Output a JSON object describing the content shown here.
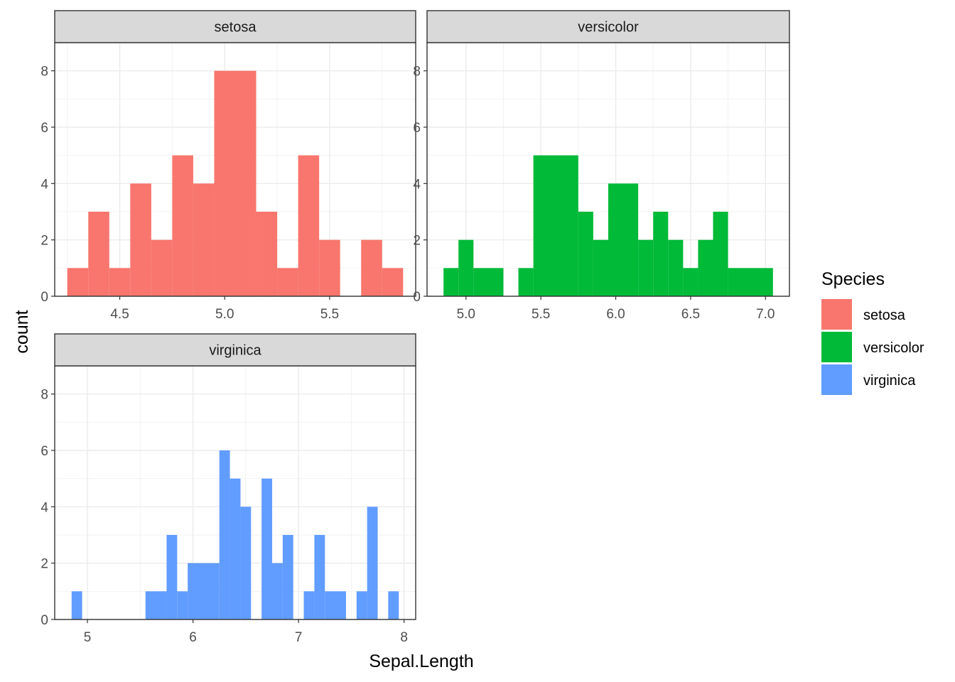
{
  "chart_data": {
    "type": "bar",
    "xlabel": "Sepal.Length",
    "ylabel": "count",
    "ylim": [
      0,
      9
    ],
    "yticks": [
      0,
      2,
      4,
      6,
      8
    ],
    "grid": true,
    "legend": {
      "title": "Species",
      "placement": "right",
      "entries": [
        {
          "label": "setosa",
          "color": "#F8766D"
        },
        {
          "label": "versicolor",
          "color": "#00BA38"
        },
        {
          "label": "virginica",
          "color": "#619CFF"
        }
      ]
    },
    "panels": [
      {
        "strip": "setosa",
        "color": "#F8766D",
        "xlim": [
          4.19,
          5.91
        ],
        "xticks": [
          {
            "v": 4.5,
            "label": "4.5"
          },
          {
            "v": 5.0,
            "label": "5.0"
          },
          {
            "v": 5.5,
            "label": "5.5"
          }
        ],
        "bins": [
          {
            "x0": 4.25,
            "x1": 4.35,
            "count": 1
          },
          {
            "x0": 4.35,
            "x1": 4.45,
            "count": 3
          },
          {
            "x0": 4.45,
            "x1": 4.55,
            "count": 1
          },
          {
            "x0": 4.55,
            "x1": 4.65,
            "count": 4
          },
          {
            "x0": 4.65,
            "x1": 4.75,
            "count": 2
          },
          {
            "x0": 4.75,
            "x1": 4.85,
            "count": 5
          },
          {
            "x0": 4.85,
            "x1": 4.95,
            "count": 4
          },
          {
            "x0": 4.95,
            "x1": 5.05,
            "count": 8
          },
          {
            "x0": 5.05,
            "x1": 5.15,
            "count": 8
          },
          {
            "x0": 5.15,
            "x1": 5.25,
            "count": 3
          },
          {
            "x0": 5.25,
            "x1": 5.35,
            "count": 1
          },
          {
            "x0": 5.35,
            "x1": 5.45,
            "count": 5
          },
          {
            "x0": 5.45,
            "x1": 5.55,
            "count": 2
          },
          {
            "x0": 5.55,
            "x1": 5.65,
            "count": 0
          },
          {
            "x0": 5.65,
            "x1": 5.75,
            "count": 2
          },
          {
            "x0": 5.75,
            "x1": 5.85,
            "count": 1
          }
        ]
      },
      {
        "strip": "versicolor",
        "color": "#00BA38",
        "xlim": [
          4.74,
          7.16
        ],
        "xticks": [
          {
            "v": 5.0,
            "label": "5.0"
          },
          {
            "v": 5.5,
            "label": "5.5"
          },
          {
            "v": 6.0,
            "label": "6.0"
          },
          {
            "v": 6.5,
            "label": "6.5"
          },
          {
            "v": 7.0,
            "label": "7.0"
          }
        ],
        "bins": [
          {
            "x0": 4.85,
            "x1": 4.95,
            "count": 1
          },
          {
            "x0": 4.95,
            "x1": 5.05,
            "count": 2
          },
          {
            "x0": 5.05,
            "x1": 5.25,
            "count": 1
          },
          {
            "x0": 5.25,
            "x1": 5.35,
            "count": 0
          },
          {
            "x0": 5.35,
            "x1": 5.45,
            "count": 1
          },
          {
            "x0": 5.45,
            "x1": 5.75,
            "count": 5
          },
          {
            "x0": 5.75,
            "x1": 5.85,
            "count": 3
          },
          {
            "x0": 5.85,
            "x1": 5.95,
            "count": 2
          },
          {
            "x0": 5.95,
            "x1": 6.15,
            "count": 4
          },
          {
            "x0": 6.15,
            "x1": 6.25,
            "count": 2
          },
          {
            "x0": 6.25,
            "x1": 6.35,
            "count": 3
          },
          {
            "x0": 6.35,
            "x1": 6.45,
            "count": 2
          },
          {
            "x0": 6.45,
            "x1": 6.55,
            "count": 1
          },
          {
            "x0": 6.55,
            "x1": 6.65,
            "count": 2
          },
          {
            "x0": 6.65,
            "x1": 6.75,
            "count": 3
          },
          {
            "x0": 6.75,
            "x1": 7.05,
            "count": 1
          }
        ]
      },
      {
        "strip": "virginica",
        "color": "#619CFF",
        "xlim": [
          4.69,
          8.11
        ],
        "xticks": [
          {
            "v": 5,
            "label": "5"
          },
          {
            "v": 6,
            "label": "6"
          },
          {
            "v": 7,
            "label": "7"
          },
          {
            "v": 8,
            "label": "8"
          }
        ],
        "bins": [
          {
            "x0": 4.85,
            "x1": 4.95,
            "count": 1
          },
          {
            "x0": 5.55,
            "x1": 5.75,
            "count": 1
          },
          {
            "x0": 5.75,
            "x1": 5.85,
            "count": 3
          },
          {
            "x0": 5.85,
            "x1": 5.95,
            "count": 1
          },
          {
            "x0": 5.95,
            "x1": 6.25,
            "count": 2
          },
          {
            "x0": 6.25,
            "x1": 6.35,
            "count": 6
          },
          {
            "x0": 6.35,
            "x1": 6.45,
            "count": 5
          },
          {
            "x0": 6.45,
            "x1": 6.55,
            "count": 4
          },
          {
            "x0": 6.65,
            "x1": 6.75,
            "count": 5
          },
          {
            "x0": 6.75,
            "x1": 6.85,
            "count": 2
          },
          {
            "x0": 6.85,
            "x1": 6.95,
            "count": 3
          },
          {
            "x0": 7.05,
            "x1": 7.15,
            "count": 1
          },
          {
            "x0": 7.15,
            "x1": 7.25,
            "count": 3
          },
          {
            "x0": 7.25,
            "x1": 7.45,
            "count": 1
          },
          {
            "x0": 7.55,
            "x1": 7.65,
            "count": 1
          },
          {
            "x0": 7.65,
            "x1": 7.75,
            "count": 4
          },
          {
            "x0": 7.85,
            "x1": 7.95,
            "count": 1
          }
        ]
      }
    ]
  }
}
